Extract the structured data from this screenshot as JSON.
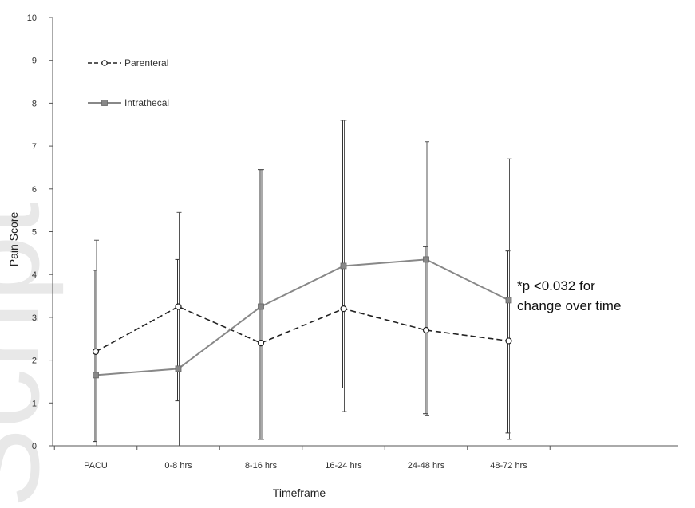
{
  "chart_data": {
    "type": "line",
    "title": "",
    "xlabel": "Timeframe",
    "ylabel": "Pain Score",
    "ylim": [
      0,
      10
    ],
    "yticks": [
      "0",
      "1",
      "2",
      "3",
      "4",
      "5",
      "6",
      "7",
      "8",
      "9",
      "10"
    ],
    "categories": [
      "PACU",
      "0-8 hrs",
      "8-16 hrs",
      "16-24 hrs",
      "24-48 hrs",
      "48-72 hrs"
    ],
    "grid": false,
    "legend_position": "top-left",
    "series": [
      {
        "name": "Parenteral",
        "line_style": "dashed",
        "marker": "open-circle",
        "color": "#222222",
        "values": [
          2.2,
          3.25,
          2.4,
          3.2,
          2.7,
          2.45
        ],
        "error_upper": [
          4.1,
          4.35,
          6.45,
          7.6,
          4.65,
          4.55
        ],
        "error_lower": [
          0.1,
          1.05,
          0.15,
          1.35,
          0.75,
          0.3
        ]
      },
      {
        "name": "Intrathecal",
        "line_style": "solid",
        "marker": "filled-square",
        "color": "#888888",
        "values": [
          1.65,
          1.8,
          3.25,
          4.2,
          4.35,
          3.4
        ],
        "error_upper": [
          4.8,
          5.45,
          6.45,
          7.6,
          7.1,
          6.7
        ],
        "error_lower": [
          0.0,
          0.0,
          0.15,
          0.8,
          0.7,
          0.15
        ]
      }
    ],
    "annotation": [
      "*p <0.032 for",
      "change over time"
    ]
  },
  "watermark": {
    "text": "Script",
    "color": "#e8e8e8"
  }
}
